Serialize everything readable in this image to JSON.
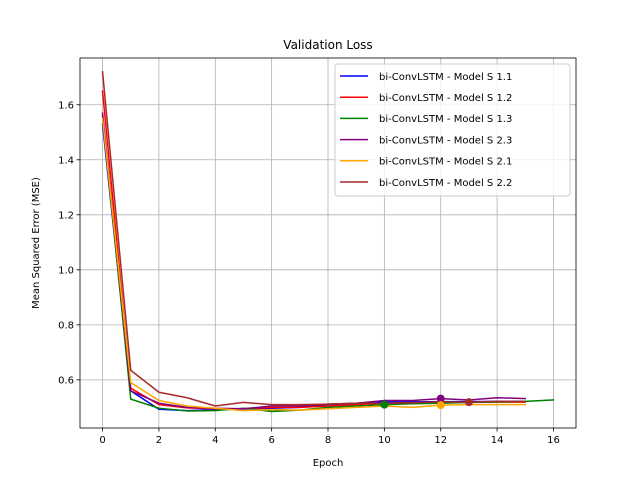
{
  "chart_data": {
    "type": "line",
    "title": "Validation Loss",
    "xlabel": "Epoch",
    "ylabel": "Mean Squared Error (MSE)",
    "xlim": [
      -0.8,
      16.8
    ],
    "ylim": [
      0.425,
      1.77
    ],
    "xticks": [
      0,
      2,
      4,
      6,
      8,
      10,
      12,
      14,
      16
    ],
    "yticks": [
      0.6,
      0.8,
      1.0,
      1.2,
      1.4,
      1.6
    ],
    "ytick_labels": [
      "0.6",
      "0.8",
      "1.0",
      "1.2",
      "1.4",
      "1.6"
    ],
    "grid": true,
    "legend_position": "upper right",
    "series": [
      {
        "name": "bi-ConvLSTM - Model S 1.1",
        "color": "#0000ff",
        "x": [
          0,
          1,
          2,
          3,
          4,
          5,
          6,
          7,
          8,
          9,
          10,
          11,
          12,
          13,
          14,
          15
        ],
        "values": [
          1.53,
          0.56,
          0.493,
          0.488,
          0.492,
          0.494,
          0.497,
          0.5,
          0.51,
          0.515,
          0.52,
          0.52,
          0.521,
          0.521,
          0.522,
          0.522
        ],
        "marker_index": null
      },
      {
        "name": "bi-ConvLSTM - Model S 1.2",
        "color": "#ff0000",
        "x": [
          0,
          1,
          2,
          3,
          4,
          5,
          6,
          7,
          8,
          9,
          10,
          11,
          12,
          13,
          14,
          15
        ],
        "values": [
          1.65,
          0.57,
          0.51,
          0.498,
          0.495,
          0.495,
          0.5,
          0.5,
          0.505,
          0.51,
          0.515,
          0.517,
          0.518,
          0.518,
          0.519,
          0.519
        ],
        "marker_index": null
      },
      {
        "name": "bi-ConvLSTM - Model S 1.3",
        "color": "#008000",
        "x": [
          0,
          1,
          2,
          3,
          4,
          5,
          6,
          7,
          8,
          9,
          10,
          11,
          12,
          13,
          14,
          15,
          16
        ],
        "values": [
          1.56,
          0.53,
          0.497,
          0.487,
          0.488,
          0.497,
          0.485,
          0.49,
          0.5,
          0.505,
          0.51,
          0.513,
          0.515,
          0.518,
          0.52,
          0.522,
          0.527
        ],
        "marker_index": 10
      },
      {
        "name": "bi-ConvLSTM - Model S 2.3",
        "color": "#800080",
        "x": [
          0,
          1,
          2,
          3,
          4,
          5,
          6,
          7,
          8,
          9,
          10,
          11,
          12,
          13,
          14,
          15
        ],
        "values": [
          1.57,
          0.56,
          0.515,
          0.5,
          0.497,
          0.495,
          0.505,
          0.505,
          0.512,
          0.515,
          0.525,
          0.525,
          0.532,
          0.527,
          0.535,
          0.532
        ],
        "marker_index": 12
      },
      {
        "name": "bi-ConvLSTM - Model S 2.1",
        "color": "#ffa500",
        "x": [
          0,
          1,
          2,
          3,
          4,
          5,
          6,
          7,
          8,
          9,
          10,
          11,
          12,
          13,
          14,
          15
        ],
        "values": [
          1.55,
          0.59,
          0.525,
          0.505,
          0.497,
          0.488,
          0.492,
          0.49,
          0.495,
          0.5,
          0.505,
          0.5,
          0.508,
          0.51,
          0.51,
          0.51
        ],
        "marker_index": 12
      },
      {
        "name": "bi-ConvLSTM - Model S 2.2",
        "color": "#a52a2a",
        "x": [
          0,
          1,
          2,
          3,
          4,
          5,
          6,
          7,
          8,
          9,
          10,
          11,
          12,
          13,
          14,
          15
        ],
        "values": [
          1.72,
          0.635,
          0.555,
          0.535,
          0.505,
          0.518,
          0.51,
          0.51,
          0.512,
          0.515,
          0.515,
          0.517,
          0.52,
          0.519,
          0.522,
          0.522
        ],
        "marker_index": 13
      }
    ]
  }
}
